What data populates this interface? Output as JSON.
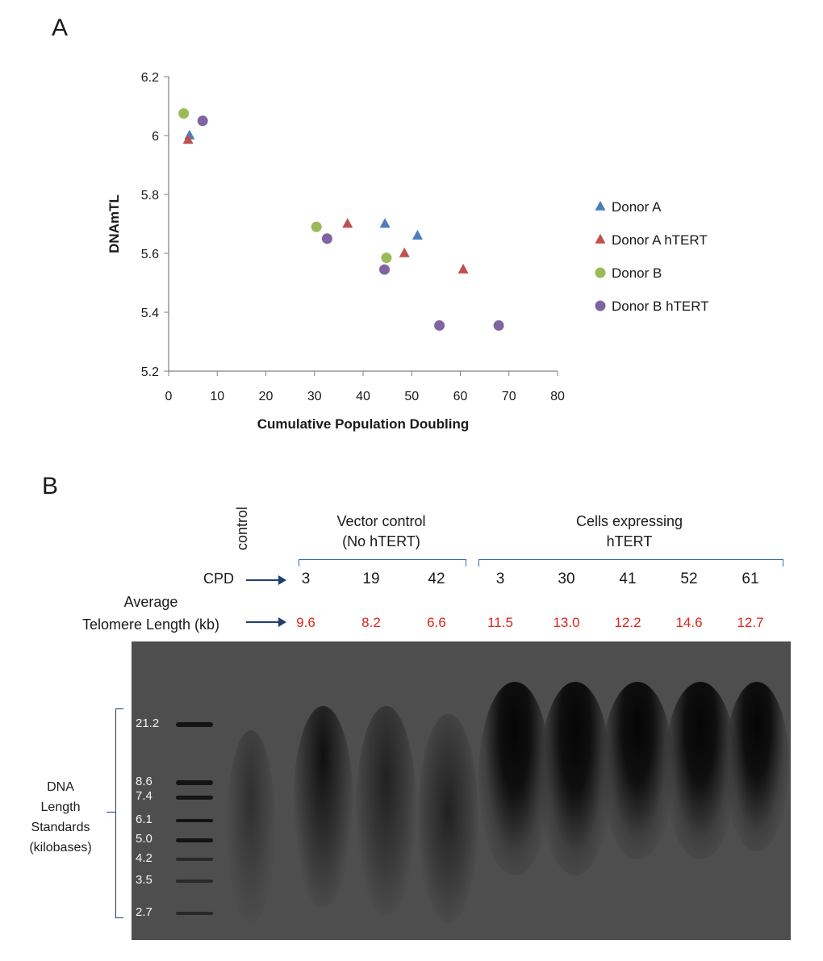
{
  "panel_a_label": "A",
  "panel_b_label": "B",
  "chart_data": {
    "type": "scatter",
    "xlabel": "Cumulative Population Doubling",
    "ylabel": "DNAmTL",
    "xlim": [
      0,
      80
    ],
    "ylim": [
      5.2,
      6.2
    ],
    "xticks": [
      "0",
      "10",
      "20",
      "30",
      "40",
      "50",
      "60",
      "70",
      "80"
    ],
    "yticks": [
      "5.2",
      "5.4",
      "5.6",
      "5.8",
      "6",
      "6.2"
    ],
    "legend_position": "right",
    "series": [
      {
        "name": "Donor A",
        "marker": "triangle",
        "color": "#4a7ebb",
        "points": [
          [
            4.3,
            6.0
          ],
          [
            44.5,
            5.7
          ],
          [
            51.2,
            5.66
          ]
        ]
      },
      {
        "name": "Donor A hTERT",
        "marker": "triangle",
        "color": "#c0504d",
        "points": [
          [
            4.0,
            5.985
          ],
          [
            36.8,
            5.7
          ],
          [
            48.5,
            5.6
          ],
          [
            60.6,
            5.545
          ]
        ]
      },
      {
        "name": "Donor B",
        "marker": "circle",
        "color": "#9bbb59",
        "points": [
          [
            3.1,
            6.075
          ],
          [
            30.4,
            5.69
          ],
          [
            44.8,
            5.585
          ]
        ]
      },
      {
        "name": "Donor B hTERT",
        "marker": "circle",
        "color": "#8064a2",
        "points": [
          [
            7.0,
            6.05
          ],
          [
            32.6,
            5.65
          ],
          [
            44.4,
            5.545
          ],
          [
            55.7,
            5.355
          ],
          [
            67.9,
            5.355
          ]
        ]
      }
    ]
  },
  "gel": {
    "control_label": "control",
    "vector_group": "Vector control\n(No hTERT)",
    "hTERT_group": "Cells expressing\nhTERT",
    "cpd_label": "CPD",
    "avg_label": "Average\nTelomere Length (kb)",
    "cpd_values": [
      "3",
      "19",
      "42",
      "3",
      "30",
      "41",
      "52",
      "61"
    ],
    "telomere_lengths": [
      "9.6",
      "8.2",
      "6.6",
      "11.5",
      "13.0",
      "12.2",
      "14.6",
      "12.7"
    ],
    "standards": [
      "21.2",
      "8.6",
      "7.4",
      "6.1",
      "5.0",
      "4.2",
      "3.5",
      "2.7"
    ],
    "standards_caption": "DNA\nLength\nStandards\n(kilobases)"
  }
}
